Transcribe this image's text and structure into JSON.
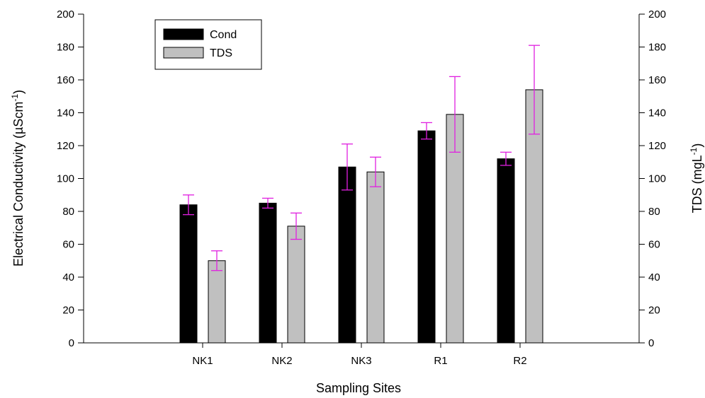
{
  "chart_data": {
    "type": "bar",
    "categories": [
      "NK1",
      "NK2",
      "NK3",
      "R1",
      "R2"
    ],
    "series": [
      {
        "name": "Cond",
        "color": "#000000",
        "values": [
          84,
          85,
          107,
          129,
          112
        ],
        "errors": [
          6,
          3,
          14,
          5,
          4
        ]
      },
      {
        "name": "TDS",
        "color": "#c0c0c0",
        "values": [
          50,
          71,
          104,
          139,
          154
        ],
        "errors": [
          6,
          8,
          9,
          23,
          27
        ]
      }
    ],
    "error_bar_color": "#e020e0",
    "xlabel": "Sampling Sites",
    "ylabel": {
      "prefix": "Electrical Conductivity (",
      "mu": "µ",
      "unit": "Scm",
      "sup": "-1",
      "suffix": ")"
    },
    "y2label": {
      "prefix": "TDS (mgL",
      "sup": "-1",
      "suffix": ")"
    },
    "ylim": [
      0,
      200
    ],
    "y2lim": [
      0,
      200
    ],
    "yticks": [
      0,
      20,
      40,
      60,
      80,
      100,
      120,
      140,
      160,
      180,
      200
    ],
    "legend_position": "top-left"
  }
}
